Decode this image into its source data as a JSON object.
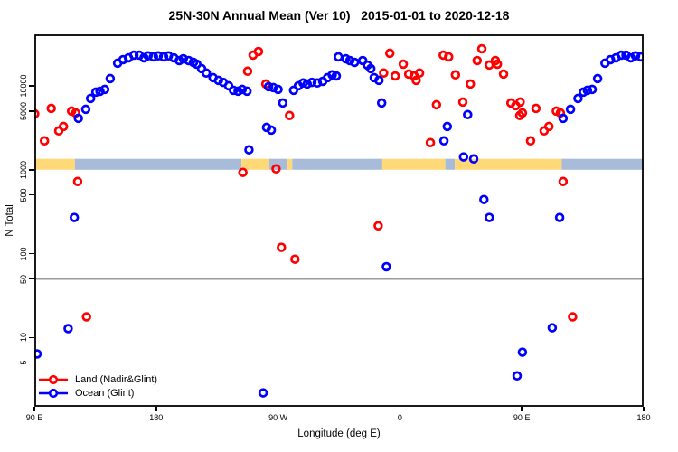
{
  "title": "25N-30N Annual Mean (Ver 10)   2015-01-01 to 2020-12-18",
  "colors": {
    "land": "#ff0000",
    "ocean": "#0000ff",
    "band_land": "#ffd878",
    "band_ocean": "#a8bcda",
    "ref_line": "#9b9b9b",
    "axis": "#000000"
  },
  "legend": {
    "entries": [
      {
        "label": "Land (Nadir&Glint)",
        "color_key": "land"
      },
      {
        "label": "Ocean (Glint)",
        "color_key": "ocean"
      }
    ]
  },
  "chart_data": {
    "type": "scatter",
    "title": "25N-30N Annual Mean (Ver 10)   2015-01-01 to 2020-12-18",
    "xlabel": "Longitude (deg E)",
    "ylabel": "N Total",
    "x_axis": {
      "range": [
        90,
        540
      ],
      "note": "longitude axis spans 450 deg; 90E-180 region appears on both ends",
      "ticks": [
        {
          "value": 90,
          "label": "90 E"
        },
        {
          "value": 180,
          "label": "180"
        },
        {
          "value": 270,
          "label": "90 W"
        },
        {
          "value": 360,
          "label": "0"
        },
        {
          "value": 450,
          "label": "90 E"
        },
        {
          "value": 540,
          "label": "180"
        }
      ]
    },
    "y_axis": {
      "scale": "log",
      "range": [
        1.5,
        41000
      ],
      "ticks": [
        {
          "value": 5,
          "label": "5"
        },
        {
          "value": 10,
          "label": "10"
        },
        {
          "value": 50,
          "label": "50"
        },
        {
          "value": 100,
          "label": "100"
        },
        {
          "value": 500,
          "label": "500"
        },
        {
          "value": 1000,
          "label": "1000"
        },
        {
          "value": 5000,
          "label": "5000"
        },
        {
          "value": 10000,
          "label": "10000"
        }
      ]
    },
    "reference_line_y": 50,
    "land_ocean_band": {
      "value_range": [
        1000,
        1350
      ],
      "segments": [
        {
          "from": 90,
          "to": 120,
          "surface": "land"
        },
        {
          "from": 120,
          "to": 243,
          "surface": "ocean"
        },
        {
          "from": 243,
          "to": 263.5,
          "surface": "land"
        },
        {
          "from": 263.5,
          "to": 277,
          "surface": "ocean"
        },
        {
          "from": 277,
          "to": 280.5,
          "surface": "land"
        },
        {
          "from": 280.5,
          "to": 347,
          "surface": "ocean"
        },
        {
          "from": 347,
          "to": 393.5,
          "surface": "land"
        },
        {
          "from": 393.5,
          "to": 400.5,
          "surface": "ocean"
        },
        {
          "from": 400.5,
          "to": 479.5,
          "surface": "land"
        },
        {
          "from": 479.5,
          "to": 540,
          "surface": "ocean"
        }
      ]
    },
    "series": [
      {
        "name": "Land (Nadir&Glint)",
        "color_key": "land",
        "points": [
          [
            90.3,
            4640
          ],
          [
            97.5,
            2210
          ],
          [
            102.5,
            5380
          ],
          [
            108,
            2900
          ],
          [
            111.5,
            3280
          ],
          [
            117.5,
            5000
          ],
          [
            120.5,
            4750
          ],
          [
            122,
            724
          ],
          [
            128.5,
            17.7
          ],
          [
            244,
            929
          ],
          [
            247.5,
            14900
          ],
          [
            251.5,
            23200
          ],
          [
            255.5,
            25600
          ],
          [
            261,
            10500
          ],
          [
            268.5,
            1025
          ],
          [
            272.5,
            119
          ],
          [
            278.5,
            4420
          ],
          [
            282.5,
            86
          ],
          [
            344,
            215
          ],
          [
            348,
            14200
          ],
          [
            352.5,
            24400
          ],
          [
            356.5,
            13100
          ],
          [
            362.5,
            18100
          ],
          [
            366.5,
            13800
          ],
          [
            370.5,
            13100
          ],
          [
            372,
            11600
          ],
          [
            374.5,
            14200
          ],
          [
            382.5,
            2100
          ],
          [
            387,
            5940
          ],
          [
            392,
            23200
          ],
          [
            396,
            22100
          ],
          [
            401,
            13500
          ],
          [
            406.5,
            6400
          ],
          [
            412,
            10500
          ],
          [
            417,
            20000
          ],
          [
            420.5,
            27600
          ],
          [
            426,
            17700
          ],
          [
            430.5,
            20000
          ],
          [
            432,
            18100
          ],
          [
            436.5,
            13800
          ],
          [
            442,
            6250
          ],
          [
            445.5,
            5800
          ],
          [
            448.5,
            4420
          ],
          [
            448.8,
            6400
          ],
          [
            450.5,
            4750
          ],
          [
            456.5,
            2210
          ],
          [
            460.5,
            5380
          ],
          [
            466.5,
            2900
          ],
          [
            470,
            3280
          ],
          [
            475.5,
            5000
          ],
          [
            478.5,
            4750
          ],
          [
            480.5,
            724
          ],
          [
            487.5,
            17.7
          ]
        ]
      },
      {
        "name": "Ocean (Glint)",
        "color_key": "ocean",
        "points": [
          [
            92,
            6.4
          ],
          [
            115,
            12.8
          ],
          [
            119.5,
            270
          ],
          [
            122.5,
            4100
          ],
          [
            128,
            5250
          ],
          [
            131.5,
            7070
          ],
          [
            135.5,
            8400
          ],
          [
            138.5,
            8600
          ],
          [
            142,
            9050
          ],
          [
            146,
            12200
          ],
          [
            151.5,
            18600
          ],
          [
            155.5,
            20500
          ],
          [
            159.5,
            21500
          ],
          [
            163.5,
            23200
          ],
          [
            167.5,
            23200
          ],
          [
            171,
            21500
          ],
          [
            174,
            22700
          ],
          [
            178,
            22100
          ],
          [
            181.5,
            22700
          ],
          [
            185.5,
            22100
          ],
          [
            189,
            22700
          ],
          [
            193,
            21500
          ],
          [
            197,
            20000
          ],
          [
            200,
            21000
          ],
          [
            204,
            20000
          ],
          [
            207.5,
            19000
          ],
          [
            210,
            18100
          ],
          [
            213.5,
            16000
          ],
          [
            217,
            14200
          ],
          [
            222,
            12500
          ],
          [
            226,
            11600
          ],
          [
            229.5,
            11000
          ],
          [
            233.5,
            10000
          ],
          [
            237,
            8840
          ],
          [
            240.5,
            8620
          ],
          [
            243.5,
            9050
          ],
          [
            247,
            8620
          ],
          [
            248.5,
            1730
          ],
          [
            259,
            2.2
          ],
          [
            261.5,
            3200
          ],
          [
            263,
            9750
          ],
          [
            265,
            2970
          ],
          [
            266.5,
            9520
          ],
          [
            270,
            9050
          ],
          [
            273.5,
            6250
          ],
          [
            281.5,
            8840
          ],
          [
            285,
            10000
          ],
          [
            288.5,
            10800
          ],
          [
            291.5,
            10500
          ],
          [
            295,
            11000
          ],
          [
            299,
            10800
          ],
          [
            303,
            11300
          ],
          [
            306.5,
            12500
          ],
          [
            310,
            13500
          ],
          [
            313,
            13100
          ],
          [
            314.5,
            22100
          ],
          [
            320,
            21000
          ],
          [
            323,
            20000
          ],
          [
            326.5,
            19000
          ],
          [
            332.5,
            20000
          ],
          [
            336,
            17600
          ],
          [
            338.5,
            16000
          ],
          [
            341,
            12500
          ],
          [
            344.5,
            11600
          ],
          [
            346.5,
            6250
          ],
          [
            350,
            70
          ],
          [
            392.5,
            2210
          ],
          [
            395,
            3280
          ],
          [
            407,
            1420
          ],
          [
            410,
            4530
          ],
          [
            414.5,
            1345
          ],
          [
            422,
            442
          ],
          [
            426,
            270
          ],
          [
            446.5,
            3.5
          ],
          [
            450.5,
            6.7
          ],
          [
            472.5,
            13.1
          ],
          [
            478,
            270
          ],
          [
            480.5,
            4100
          ],
          [
            486,
            5250
          ],
          [
            491.5,
            7070
          ],
          [
            495.5,
            8400
          ],
          [
            498.5,
            8840
          ],
          [
            502,
            9050
          ],
          [
            506,
            12200
          ],
          [
            511.5,
            18600
          ],
          [
            515.5,
            20500
          ],
          [
            519.5,
            21500
          ],
          [
            523.5,
            23200
          ],
          [
            527,
            23200
          ],
          [
            530.5,
            21500
          ],
          [
            534,
            22700
          ],
          [
            538,
            22100
          ]
        ]
      }
    ]
  }
}
